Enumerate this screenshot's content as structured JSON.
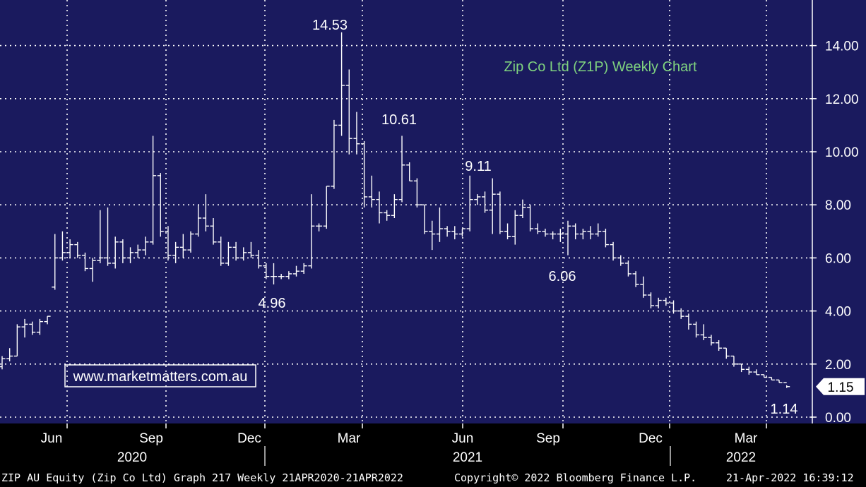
{
  "chart_data": {
    "type": "line",
    "title": "Zip Co Ltd (Z1P) Weekly Chart",
    "watermark": "www.marketmatters.com.au",
    "ylim": [
      0,
      15.5
    ],
    "y_ticks": [
      "0.00",
      "2.00",
      "4.00",
      "6.00",
      "8.00",
      "10.00",
      "12.00",
      "14.00"
    ],
    "x_month_labels": [
      "Jun",
      "Sep",
      "Dec",
      "Mar",
      "Jun",
      "Sep",
      "Dec",
      "Mar"
    ],
    "x_year_labels": [
      "2020",
      "2021",
      "2022"
    ],
    "last_price_label": "1.15",
    "annotations": [
      "14.53",
      "10.61",
      "9.11",
      "6.06",
      "4.96",
      "1.14"
    ],
    "series": [
      {
        "type": "ohlc",
        "bars": [
          [
            1.9,
            2.3,
            1.8,
            2.2
          ],
          [
            2.2,
            2.6,
            2.1,
            2.3
          ],
          [
            2.3,
            3.5,
            2.3,
            3.4
          ],
          [
            3.4,
            3.7,
            3.0,
            3.5
          ],
          [
            3.5,
            3.6,
            3.1,
            3.2
          ],
          [
            3.2,
            3.7,
            3.1,
            3.6
          ],
          [
            3.6,
            3.8,
            3.5,
            3.8
          ],
          [
            4.9,
            6.9,
            4.8,
            6.0
          ],
          [
            6.0,
            7.0,
            5.9,
            6.2
          ],
          [
            6.2,
            6.7,
            6.0,
            6.5
          ],
          [
            6.5,
            6.6,
            6.0,
            6.1
          ],
          [
            6.1,
            6.2,
            5.5,
            5.6
          ],
          [
            5.6,
            6.0,
            5.1,
            5.9
          ],
          [
            5.9,
            7.8,
            5.8,
            6.0
          ],
          [
            6.0,
            7.9,
            5.7,
            5.8
          ],
          [
            5.8,
            6.8,
            5.6,
            6.6
          ],
          [
            6.6,
            6.7,
            5.8,
            6.0
          ],
          [
            6.0,
            6.4,
            5.8,
            6.2
          ],
          [
            6.2,
            6.5,
            6.0,
            6.3
          ],
          [
            6.3,
            6.8,
            6.1,
            6.6
          ],
          [
            6.6,
            10.6,
            6.5,
            9.1
          ],
          [
            9.1,
            9.2,
            6.8,
            7.0
          ],
          [
            7.0,
            7.2,
            5.9,
            6.1
          ],
          [
            6.1,
            6.6,
            5.8,
            6.4
          ],
          [
            6.4,
            6.9,
            6.0,
            6.3
          ],
          [
            6.3,
            7.0,
            6.2,
            6.9
          ],
          [
            6.9,
            8.0,
            6.8,
            7.5
          ],
          [
            7.5,
            8.4,
            7.0,
            7.2
          ],
          [
            7.2,
            7.5,
            6.5,
            6.6
          ],
          [
            6.6,
            6.8,
            5.7,
            5.8
          ],
          [
            5.8,
            6.6,
            5.7,
            6.4
          ],
          [
            6.4,
            6.6,
            5.9,
            6.0
          ],
          [
            6.0,
            6.4,
            5.9,
            6.2
          ],
          [
            6.2,
            6.6,
            6.0,
            6.1
          ],
          [
            6.1,
            6.3,
            5.6,
            5.7
          ],
          [
            5.7,
            5.8,
            5.2,
            5.3
          ],
          [
            5.3,
            5.8,
            5.0,
            5.3
          ],
          [
            5.3,
            5.4,
            5.2,
            5.3
          ],
          [
            5.3,
            5.5,
            5.2,
            5.4
          ],
          [
            5.4,
            5.7,
            5.3,
            5.5
          ],
          [
            5.5,
            5.8,
            5.4,
            5.7
          ],
          [
            5.7,
            8.4,
            5.6,
            7.2
          ],
          [
            7.2,
            7.3,
            7.0,
            7.2
          ],
          [
            7.2,
            8.7,
            7.1,
            8.7
          ],
          [
            8.7,
            11.2,
            8.6,
            11.0
          ],
          [
            11.0,
            14.5,
            10.6,
            12.5
          ],
          [
            12.5,
            13.1,
            9.9,
            10.5
          ],
          [
            10.5,
            11.5,
            9.9,
            10.3
          ],
          [
            10.3,
            10.4,
            7.9,
            8.3
          ],
          [
            8.3,
            9.1,
            7.9,
            8.2
          ],
          [
            8.2,
            8.5,
            7.3,
            7.7
          ],
          [
            7.7,
            7.8,
            7.4,
            7.6
          ],
          [
            7.6,
            8.4,
            7.5,
            8.2
          ],
          [
            8.2,
            10.6,
            8.1,
            9.5
          ],
          [
            9.5,
            9.6,
            8.9,
            8.9
          ],
          [
            8.9,
            9.0,
            7.9,
            8.0
          ],
          [
            8.0,
            8.0,
            6.9,
            7.0
          ],
          [
            7.0,
            7.4,
            6.3,
            6.9
          ],
          [
            6.9,
            7.9,
            6.6,
            7.1
          ],
          [
            7.1,
            7.2,
            6.8,
            7.0
          ],
          [
            7.0,
            7.2,
            6.7,
            6.9
          ],
          [
            6.9,
            7.1,
            6.8,
            7.1
          ],
          [
            7.1,
            9.1,
            7.0,
            8.2
          ],
          [
            8.2,
            8.4,
            8.0,
            8.3
          ],
          [
            8.3,
            8.5,
            7.7,
            7.8
          ],
          [
            7.8,
            9.0,
            6.9,
            8.4
          ],
          [
            8.4,
            8.5,
            6.9,
            7.0
          ],
          [
            7.0,
            7.3,
            6.7,
            6.8
          ],
          [
            6.8,
            7.8,
            6.5,
            7.6
          ],
          [
            7.6,
            8.2,
            7.5,
            7.9
          ],
          [
            7.9,
            8.0,
            7.0,
            7.1
          ],
          [
            7.1,
            7.3,
            6.9,
            7.0
          ],
          [
            7.0,
            7.1,
            6.8,
            6.9
          ],
          [
            6.9,
            7.0,
            6.7,
            6.9
          ],
          [
            6.9,
            7.1,
            6.6,
            6.9
          ],
          [
            6.9,
            7.4,
            6.1,
            7.2
          ],
          [
            7.2,
            7.3,
            6.7,
            6.9
          ],
          [
            6.9,
            7.1,
            6.7,
            7.0
          ],
          [
            7.0,
            7.2,
            6.7,
            6.9
          ],
          [
            6.9,
            7.3,
            6.8,
            7.0
          ],
          [
            7.0,
            7.1,
            6.4,
            6.5
          ],
          [
            6.5,
            6.6,
            5.9,
            6.0
          ],
          [
            6.0,
            6.1,
            5.7,
            5.8
          ],
          [
            5.8,
            5.9,
            5.3,
            5.4
          ],
          [
            5.4,
            5.5,
            4.9,
            5.0
          ],
          [
            5.0,
            5.3,
            4.5,
            4.6
          ],
          [
            4.6,
            4.7,
            4.1,
            4.2
          ],
          [
            4.2,
            4.5,
            4.1,
            4.4
          ],
          [
            4.4,
            4.5,
            4.2,
            4.3
          ],
          [
            4.3,
            4.4,
            3.9,
            4.0
          ],
          [
            4.0,
            4.1,
            3.7,
            3.8
          ],
          [
            3.8,
            3.9,
            3.3,
            3.5
          ],
          [
            3.5,
            3.6,
            3.0,
            3.1
          ],
          [
            3.1,
            3.5,
            2.9,
            3.0
          ],
          [
            3.0,
            3.1,
            2.7,
            2.8
          ],
          [
            2.8,
            2.9,
            2.5,
            2.6
          ],
          [
            2.6,
            2.6,
            2.2,
            2.3
          ],
          [
            2.3,
            2.3,
            1.9,
            2.0
          ],
          [
            2.0,
            2.0,
            1.7,
            1.8
          ],
          [
            1.8,
            1.9,
            1.6,
            1.7
          ],
          [
            1.7,
            1.8,
            1.6,
            1.6
          ],
          [
            1.6,
            1.6,
            1.5,
            1.5
          ],
          [
            1.5,
            1.5,
            1.4,
            1.4
          ],
          [
            1.4,
            1.4,
            1.3,
            1.3
          ],
          [
            1.3,
            1.2,
            1.1,
            1.15
          ]
        ]
      }
    ]
  },
  "footer": {
    "left": "ZIP AU Equity (Zip Co Ltd) Graph 217  Weekly 21APR2020-21APR2022",
    "center": "Copyright© 2022 Bloomberg Finance L.P.",
    "right": "21-Apr-2022 16:39:12"
  },
  "colors": {
    "background": "#1a1a5e",
    "grid": "#ffffff",
    "price_bars": "#ffffff",
    "title_text": "#7fd27f",
    "axis_text": "#ffffff"
  }
}
